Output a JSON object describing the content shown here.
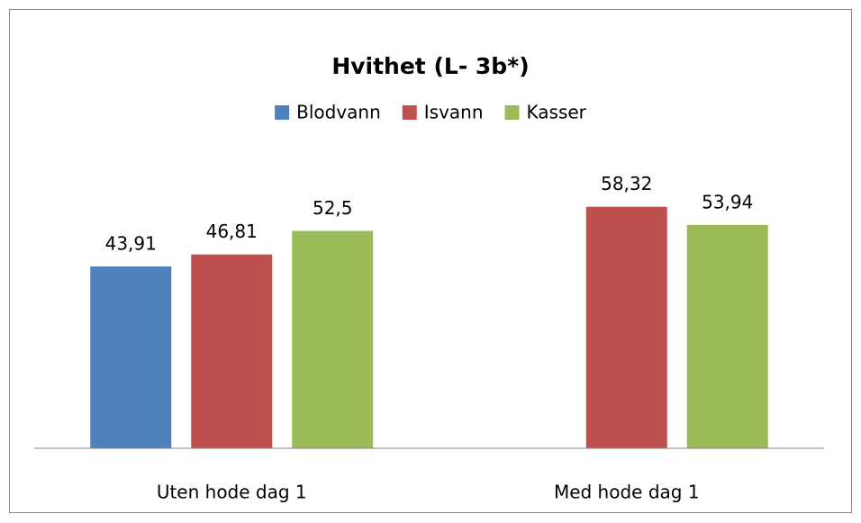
{
  "chart_data": {
    "type": "bar",
    "title": "Hvithet (L- 3b*)",
    "categories": [
      "Uten hode dag 1",
      "Med hode dag 1"
    ],
    "series": [
      {
        "name": "Blodvann",
        "color": "#4f81bd",
        "values": [
          43.91,
          null
        ],
        "value_labels": [
          "43,91",
          null
        ]
      },
      {
        "name": "Isvann",
        "color": "#c0504d",
        "values": [
          46.81,
          58.32
        ],
        "value_labels": [
          "46,81",
          "58,32"
        ]
      },
      {
        "name": "Kasser",
        "color": "#9bbb59",
        "values": [
          52.5,
          53.94
        ],
        "value_labels": [
          "52,5",
          "53,94"
        ]
      }
    ],
    "ylim": [
      0,
      70
    ],
    "legend": "top"
  }
}
